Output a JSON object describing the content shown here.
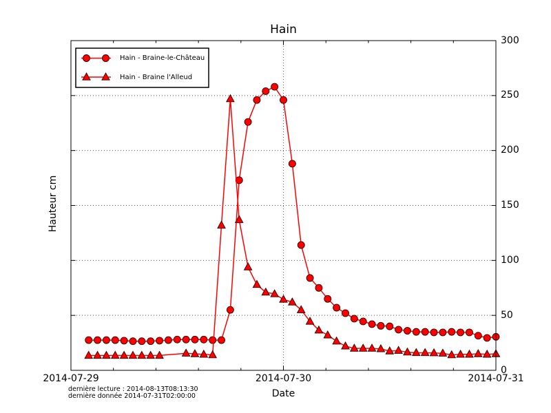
{
  "chart_data": {
    "type": "line",
    "title": "Hain",
    "xlabel": "Date",
    "ylabel": "Hauteur cm",
    "x_unit": "hours since 2014-07-29T00:00",
    "xlim": [
      0,
      48
    ],
    "ylim": [
      0,
      300
    ],
    "grid": true,
    "legend_position": "upper left",
    "xticks": {
      "positions": [
        0,
        24,
        48
      ],
      "labels": [
        "2014-07-29",
        "2014-07-30",
        "2014-07-31"
      ]
    },
    "xminor_step_hours": 4.8,
    "yticks": [
      0,
      50,
      100,
      150,
      200,
      250,
      300
    ],
    "line_color": "#ff0000",
    "marker_edge_color": "#2b0000",
    "grid_color": "#555555",
    "series": [
      {
        "name": "Hain - Braine-le-Château",
        "marker": "circle",
        "color": "#ff0000",
        "points": [
          [
            2,
            27.5
          ],
          [
            3,
            27.5
          ],
          [
            4,
            27.5
          ],
          [
            5,
            27.5
          ],
          [
            6,
            27
          ],
          [
            7,
            26.5
          ],
          [
            8,
            26.5
          ],
          [
            9,
            26.5
          ],
          [
            10,
            27
          ],
          [
            11,
            27.5
          ],
          [
            12,
            28
          ],
          [
            13,
            28
          ],
          [
            14,
            28
          ],
          [
            15,
            28
          ],
          [
            16,
            27.5
          ],
          [
            17,
            27.5
          ],
          [
            18,
            55
          ],
          [
            19,
            173
          ],
          [
            20,
            226
          ],
          [
            21,
            246
          ],
          [
            22,
            254
          ],
          [
            23,
            258
          ],
          [
            24,
            246
          ],
          [
            25,
            188
          ],
          [
            26,
            114
          ],
          [
            27,
            84
          ],
          [
            28,
            75
          ],
          [
            29,
            65
          ],
          [
            30,
            57
          ],
          [
            31,
            52
          ],
          [
            32,
            47
          ],
          [
            33,
            44.5
          ],
          [
            34,
            42
          ],
          [
            35,
            40.5
          ],
          [
            36,
            40
          ],
          [
            37,
            37
          ],
          [
            38,
            36
          ],
          [
            39,
            35
          ],
          [
            40,
            35
          ],
          [
            41,
            34.5
          ],
          [
            42,
            34.5
          ],
          [
            43,
            35
          ],
          [
            44,
            34.5
          ],
          [
            45,
            34.5
          ],
          [
            46,
            31.5
          ],
          [
            47,
            29.5
          ],
          [
            48,
            30.5
          ]
        ]
      },
      {
        "name": "Hain - Braine l'Alleud",
        "marker": "triangle",
        "color": "#ff0000",
        "points": [
          [
            2,
            13.5
          ],
          [
            3,
            13.5
          ],
          [
            4,
            13.5
          ],
          [
            5,
            13.5
          ],
          [
            6,
            13.5
          ],
          [
            7,
            13.5
          ],
          [
            8,
            13.5
          ],
          [
            9,
            13.5
          ],
          [
            10,
            13.5
          ],
          [
            13,
            15.5
          ],
          [
            14,
            15
          ],
          [
            15,
            14.5
          ],
          [
            16,
            14
          ],
          [
            17,
            132
          ],
          [
            18,
            247
          ],
          [
            19,
            137
          ],
          [
            20,
            94
          ],
          [
            21,
            78
          ],
          [
            22,
            71
          ],
          [
            23,
            69.5
          ],
          [
            24,
            64.5
          ],
          [
            25,
            62
          ],
          [
            26,
            55
          ],
          [
            27,
            44.5
          ],
          [
            28,
            36.5
          ],
          [
            29,
            32
          ],
          [
            30,
            26.5
          ],
          [
            31,
            22
          ],
          [
            32,
            20
          ],
          [
            33,
            20
          ],
          [
            34,
            20
          ],
          [
            35,
            19.5
          ],
          [
            36,
            17.5
          ],
          [
            37,
            18
          ],
          [
            38,
            16.5
          ],
          [
            39,
            16
          ],
          [
            40,
            16
          ],
          [
            41,
            15.8
          ],
          [
            42,
            15.5
          ],
          [
            43,
            14
          ],
          [
            44,
            14.5
          ],
          [
            45,
            14.5
          ],
          [
            46,
            15
          ],
          [
            47,
            14.5
          ],
          [
            48,
            15
          ]
        ]
      }
    ]
  },
  "annotations": {
    "line1": "dernière lecture : 2014-08-13T08:13:30",
    "line2": "dernière donnée  2014-07-31T02:00:00"
  }
}
